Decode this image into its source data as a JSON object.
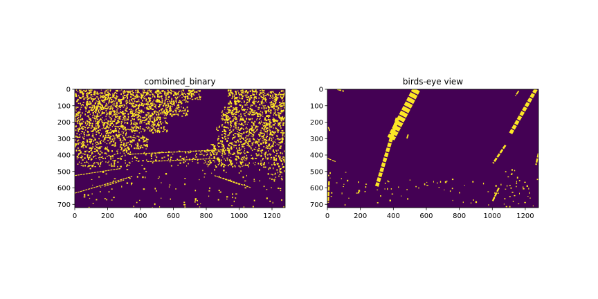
{
  "chart_data": [
    {
      "type": "heatmap",
      "title": "combined_binary",
      "xlabel": "",
      "ylabel": "",
      "xlim": [
        0,
        1280
      ],
      "ylim": [
        720,
        0
      ],
      "xticks": [
        0,
        200,
        400,
        600,
        800,
        1000,
        1200
      ],
      "yticks": [
        0,
        100,
        200,
        300,
        400,
        500,
        600,
        700
      ],
      "colormap": {
        "low": "#440154",
        "high": "#fde725"
      },
      "lines": [
        {
          "x1": 0,
          "y1": 632,
          "x2": 350,
          "y2": 530,
          "w": 4
        },
        {
          "x1": 180,
          "y1": 590,
          "x2": 300,
          "y2": 552,
          "w": 3
        },
        {
          "x1": 900,
          "y1": 540,
          "x2": 1070,
          "y2": 598,
          "w": 4
        },
        {
          "x1": 850,
          "y1": 525,
          "x2": 1005,
          "y2": 580,
          "w": 3
        },
        {
          "x1": 330,
          "y1": 395,
          "x2": 900,
          "y2": 368,
          "w": 3
        },
        {
          "x1": 440,
          "y1": 440,
          "x2": 880,
          "y2": 420,
          "w": 2
        },
        {
          "x1": 0,
          "y1": 525,
          "x2": 280,
          "y2": 482,
          "w": 2
        }
      ],
      "regions": [
        {
          "x1": 0,
          "x2": 760,
          "y1": 0,
          "y2": 60,
          "density": 0.35
        },
        {
          "x1": 0,
          "x2": 690,
          "y1": 60,
          "y2": 160,
          "density": 0.32
        },
        {
          "x1": 0,
          "x2": 560,
          "y1": 160,
          "y2": 260,
          "density": 0.3
        },
        {
          "x1": 0,
          "x2": 440,
          "y1": 260,
          "y2": 360,
          "density": 0.24
        },
        {
          "x1": 0,
          "x2": 330,
          "y1": 360,
          "y2": 470,
          "density": 0.16
        },
        {
          "x1": 930,
          "x2": 1280,
          "y1": 0,
          "y2": 100,
          "density": 0.3
        },
        {
          "x1": 890,
          "x2": 1280,
          "y1": 100,
          "y2": 220,
          "density": 0.3
        },
        {
          "x1": 860,
          "x2": 1280,
          "y1": 220,
          "y2": 330,
          "density": 0.26
        },
        {
          "x1": 800,
          "x2": 1280,
          "y1": 330,
          "y2": 470,
          "density": 0.2
        },
        {
          "x1": 1180,
          "x2": 1280,
          "y1": 470,
          "y2": 560,
          "density": 0.14
        },
        {
          "x1": 300,
          "x2": 950,
          "y1": 370,
          "y2": 450,
          "density": 0.07
        },
        {
          "x1": 0,
          "x2": 1280,
          "y1": 450,
          "y2": 720,
          "density": 0.015
        }
      ]
    },
    {
      "type": "heatmap",
      "title": "birds-eye view",
      "xlabel": "",
      "ylabel": "",
      "xlim": [
        0,
        1280
      ],
      "ylim": [
        720,
        0
      ],
      "xticks": [
        0,
        200,
        400,
        600,
        800,
        1000,
        1200
      ],
      "yticks": [
        0,
        100,
        200,
        300,
        400,
        500,
        600,
        700
      ],
      "colormap": {
        "low": "#440154",
        "high": "#fde725"
      },
      "lines": [
        {
          "x1": 540,
          "y1": 0,
          "x2": 385,
          "y2": 300,
          "w": 48
        },
        {
          "x1": 425,
          "y1": 175,
          "x2": 300,
          "y2": 590,
          "w": 22
        },
        {
          "x1": 1265,
          "y1": 0,
          "x2": 1110,
          "y2": 270,
          "w": 22
        },
        {
          "x1": 1080,
          "y1": 340,
          "x2": 1005,
          "y2": 450,
          "w": 12
        },
        {
          "x1": 1040,
          "y1": 600,
          "x2": 1000,
          "y2": 685,
          "w": 10
        },
        {
          "x1": 10,
          "y1": 560,
          "x2": 5,
          "y2": 690,
          "w": 10
        },
        {
          "x1": 1280,
          "y1": 390,
          "x2": 1265,
          "y2": 460,
          "w": 10
        },
        {
          "x1": 0,
          "y1": 420,
          "x2": 50,
          "y2": 440,
          "w": 5
        },
        {
          "x1": 60,
          "y1": 0,
          "x2": 100,
          "y2": 12,
          "w": 8
        },
        {
          "x1": 1160,
          "y1": 10,
          "x2": 1140,
          "y2": 40,
          "w": 8
        },
        {
          "x1": 490,
          "y1": 275,
          "x2": 482,
          "y2": 300,
          "w": 8
        },
        {
          "x1": 5,
          "y1": 230,
          "x2": 15,
          "y2": 255,
          "w": 6
        }
      ],
      "regions": [
        {
          "x1": 0,
          "x2": 1280,
          "y1": 540,
          "y2": 700,
          "density": 0.012
        },
        {
          "x1": 0,
          "x2": 120,
          "y1": 500,
          "y2": 600,
          "density": 0.03
        },
        {
          "x1": 1000,
          "x2": 1280,
          "y1": 480,
          "y2": 720,
          "density": 0.02
        }
      ]
    }
  ]
}
